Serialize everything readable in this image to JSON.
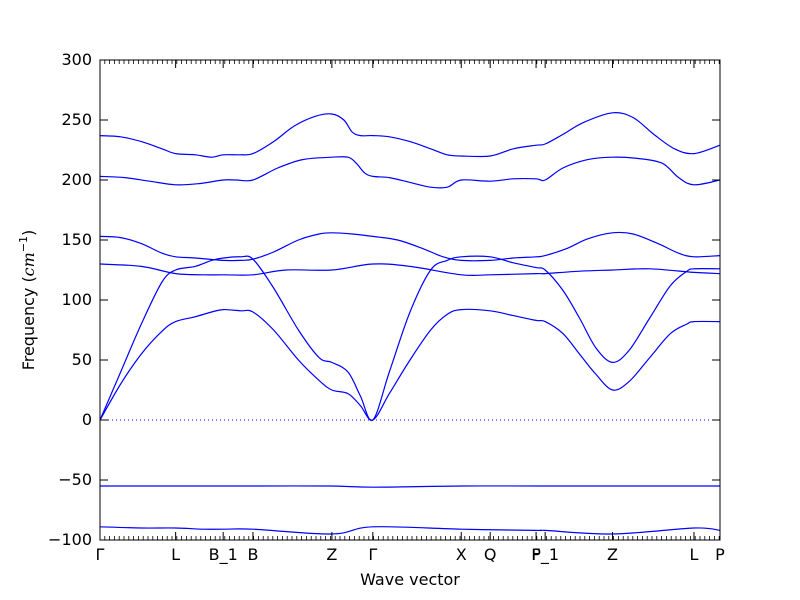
{
  "chart_data": {
    "type": "line",
    "title": "",
    "xlabel": "Wave vector",
    "ylabel_main": "Frequency (",
    "ylabel_unit": "cm",
    "ylabel_exp": "−1",
    "ylabel_close": ")",
    "ylim": [
      -100,
      300
    ],
    "xlim": [
      0,
      15
    ],
    "yticks": [
      -100,
      -50,
      0,
      50,
      100,
      150,
      200,
      250,
      300
    ],
    "ytick_labels": [
      "−100",
      "−50",
      "0",
      "50",
      "100",
      "150",
      "200",
      "250",
      "300"
    ],
    "xticks": [
      {
        "x": 0,
        "label": "Γ"
      },
      {
        "x": 1.83,
        "label": "L"
      },
      {
        "x": 2.98,
        "label": "B_1"
      },
      {
        "x": 3.7,
        "label": "B"
      },
      {
        "x": 5.61,
        "label": "Z"
      },
      {
        "x": 6.6,
        "label": "Γ"
      },
      {
        "x": 8.74,
        "label": "X"
      },
      {
        "x": 9.44,
        "label": "Q"
      },
      {
        "x": 10.55,
        "label": "F"
      },
      {
        "x": 10.77,
        "label": "P_1"
      },
      {
        "x": 12.4,
        "label": "Z"
      },
      {
        "x": 14.37,
        "label": "L"
      },
      {
        "x": 15,
        "label": "P"
      }
    ],
    "zero_line": true,
    "line_color": "#0000ff",
    "series": [
      {
        "x": [
          0,
          1,
          1.83,
          2.5,
          2.98,
          3.7,
          5.61,
          6.6,
          8.74,
          10.55,
          10.77,
          12.4,
          14.37,
          15
        ],
        "values": [
          -89,
          -90,
          -90,
          -91,
          -91,
          -91,
          -95,
          -89,
          -91,
          -92,
          -92,
          -95,
          -90,
          -92
        ]
      },
      {
        "x": [
          0,
          1.83,
          2.98,
          3.7,
          5.61,
          6.6,
          8.74,
          10.77,
          12.4,
          15
        ],
        "values": [
          -55,
          -55,
          -55,
          -55,
          -55,
          -56,
          -55,
          -55,
          -55,
          -55
        ]
      },
      {
        "x": [
          0,
          0.5,
          1,
          1.5,
          1.83,
          2.3,
          2.7,
          2.98,
          3.4,
          3.7,
          4.2,
          4.8,
          5.3,
          5.61,
          6.0,
          6.3,
          6.6,
          7.0,
          7.5,
          8.0,
          8.4,
          8.74,
          9.44,
          10.0,
          10.55,
          10.77,
          11.2,
          11.6,
          12.0,
          12.4,
          12.8,
          13.3,
          13.8,
          14.2,
          14.37,
          15
        ],
        "values": [
          0,
          30,
          55,
          74,
          82,
          86,
          90,
          92,
          91,
          90,
          75,
          50,
          33,
          25,
          22,
          12,
          0,
          22,
          50,
          75,
          88,
          92,
          91,
          87,
          83,
          82,
          72,
          55,
          38,
          25,
          32,
          52,
          72,
          80,
          82,
          82
        ]
      },
      {
        "x": [
          0,
          0.5,
          1,
          1.5,
          1.83,
          2.3,
          2.7,
          2.98,
          3.4,
          3.7,
          4.2,
          4.8,
          5.3,
          5.61,
          6.0,
          6.3,
          6.6,
          7.0,
          7.5,
          8.0,
          8.4,
          8.74,
          9.44,
          10.0,
          10.55,
          10.77,
          11.2,
          11.6,
          12.0,
          12.4,
          12.8,
          13.3,
          13.8,
          14.2,
          14.37,
          15
        ],
        "values": [
          0,
          40,
          80,
          115,
          125,
          128,
          133,
          135,
          136,
          134,
          110,
          75,
          52,
          48,
          40,
          20,
          0,
          40,
          90,
          125,
          133,
          136,
          136,
          131,
          127,
          125,
          108,
          85,
          60,
          48,
          58,
          85,
          112,
          124,
          126,
          126
        ]
      },
      {
        "x": [
          0,
          1,
          1.83,
          2.5,
          2.98,
          3.7,
          4.5,
          5.61,
          6.6,
          7.5,
          8.74,
          9.44,
          10.55,
          10.77,
          11.6,
          12.4,
          13.3,
          14.37,
          15
        ],
        "values": [
          130,
          128,
          122,
          121,
          121,
          121,
          125,
          125,
          130,
          128,
          121,
          121,
          122,
          122,
          124,
          125,
          126,
          123,
          122
        ]
      },
      {
        "x": [
          0,
          0.5,
          1,
          1.5,
          1.83,
          2.3,
          2.98,
          3.4,
          3.7,
          4.2,
          4.8,
          5.3,
          5.61,
          6.1,
          6.6,
          7.2,
          7.8,
          8.3,
          8.74,
          9.44,
          10.0,
          10.55,
          10.77,
          11.3,
          11.8,
          12.4,
          12.9,
          13.5,
          14.0,
          14.37,
          15
        ],
        "values": [
          153,
          152,
          147,
          139,
          136,
          135,
          133,
          133,
          134,
          140,
          150,
          155,
          156,
          155,
          153,
          150,
          143,
          136,
          133,
          133,
          135,
          136,
          137,
          143,
          151,
          156,
          155,
          147,
          139,
          136,
          137
        ]
      },
      {
        "x": [
          0,
          0.6,
          1.2,
          1.83,
          2.4,
          2.98,
          3.3,
          3.7,
          4.3,
          4.9,
          5.61,
          6.0,
          6.2,
          6.4,
          6.6,
          7.0,
          7.5,
          8.0,
          8.4,
          8.74,
          9.44,
          10.0,
          10.55,
          10.77,
          11.2,
          11.8,
          12.4,
          13.0,
          13.6,
          14.0,
          14.37,
          15
        ],
        "values": [
          203,
          202,
          199,
          196,
          197,
          200,
          200,
          200,
          210,
          217,
          219,
          219,
          214,
          206,
          203,
          202,
          198,
          194,
          194,
          200,
          199,
          201,
          201,
          200,
          210,
          217,
          219,
          218,
          214,
          202,
          196,
          200
        ]
      },
      {
        "x": [
          0,
          0.5,
          1,
          1.5,
          1.83,
          2.3,
          2.7,
          2.98,
          3.4,
          3.7,
          4.2,
          4.7,
          5.2,
          5.61,
          5.9,
          6.1,
          6.3,
          6.6,
          7.0,
          7.5,
          8.0,
          8.4,
          8.74,
          9.44,
          10.0,
          10.55,
          10.77,
          11.2,
          11.7,
          12.4,
          12.9,
          13.4,
          13.9,
          14.37,
          15
        ],
        "values": [
          237,
          236,
          232,
          226,
          222,
          221,
          219,
          221,
          221,
          222,
          232,
          245,
          253,
          255,
          250,
          240,
          237,
          237,
          236,
          232,
          226,
          221,
          220,
          220,
          226,
          229,
          230,
          238,
          248,
          256,
          252,
          238,
          226,
          222,
          229
        ]
      }
    ]
  }
}
